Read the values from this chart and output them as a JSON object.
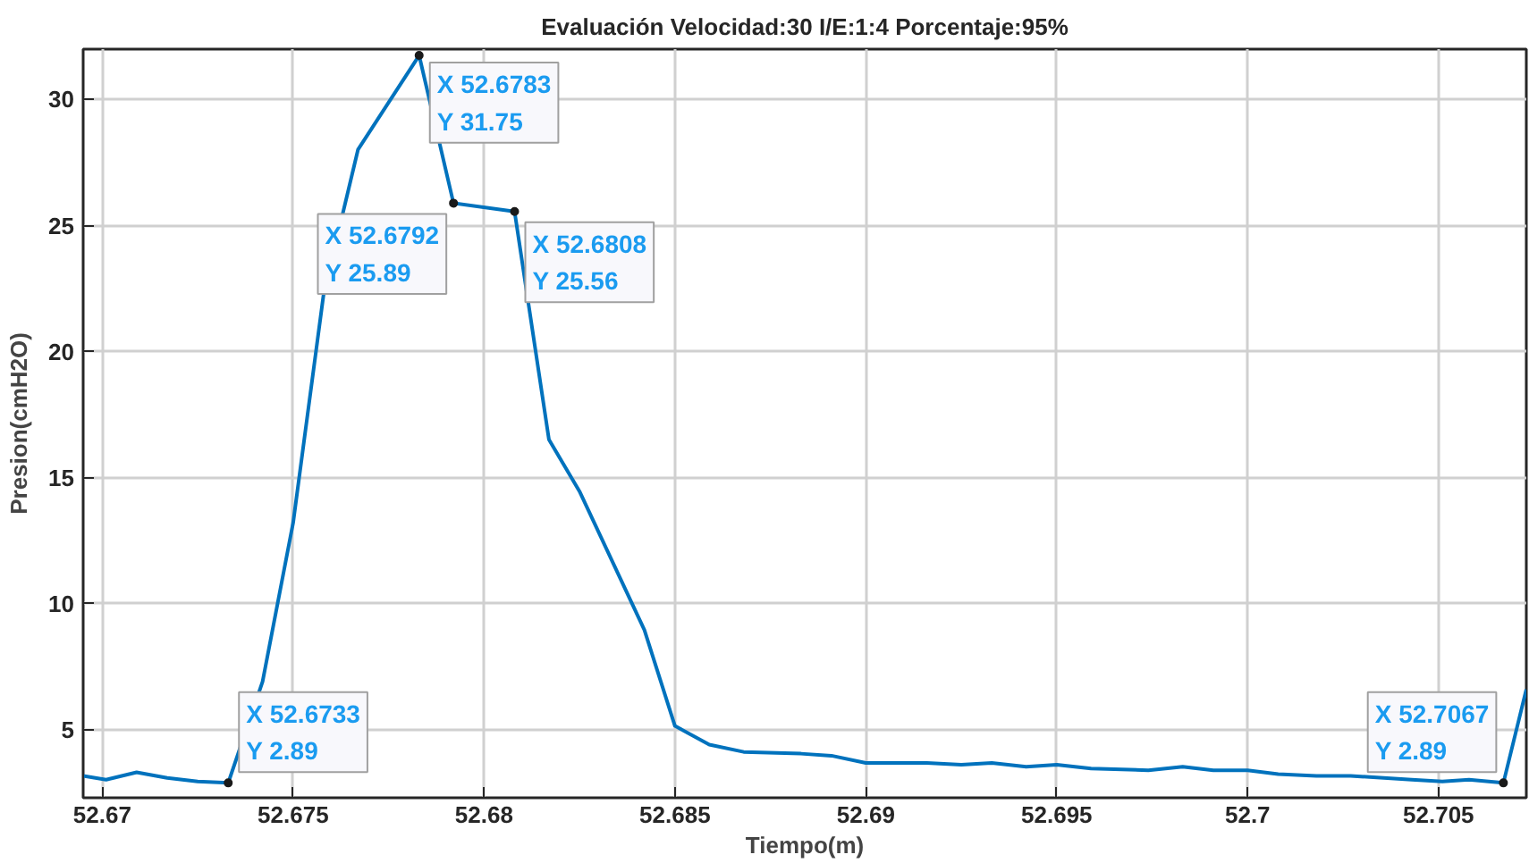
{
  "chart_data": {
    "type": "line",
    "title": "Evaluación Velocidad:30 I/E:1:4 Porcentaje:95%",
    "xlabel": "Tiempo(m)",
    "ylabel": "Presion(cmH2O)",
    "x": [
      52.6695,
      52.6701,
      52.6709,
      52.6717,
      52.6725,
      52.6733,
      52.6742,
      52.675,
      52.6758,
      52.6767,
      52.6783,
      52.6792,
      52.6808,
      52.6817,
      52.6825,
      52.6842,
      52.685,
      52.6859,
      52.6868,
      52.6883,
      52.6891,
      52.69,
      52.6916,
      52.6925,
      52.6933,
      52.6942,
      52.695,
      52.6959,
      52.6974,
      52.6983,
      52.6991,
      52.7,
      52.7008,
      52.7018,
      52.7027,
      52.7043,
      52.7051,
      52.7058,
      52.7067,
      52.7073
    ],
    "series": [
      {
        "color": "#0072bd",
        "values": [
          3.17,
          3.02,
          3.31,
          3.09,
          2.95,
          2.89,
          6.91,
          13.21,
          22.3,
          28.02,
          31.75,
          25.89,
          25.56,
          16.51,
          14.46,
          8.96,
          5.15,
          4.41,
          4.12,
          4.05,
          3.97,
          3.68,
          3.68,
          3.61,
          3.68,
          3.53,
          3.61,
          3.46,
          3.39,
          3.53,
          3.39,
          3.39,
          3.24,
          3.17,
          3.17,
          3.02,
          2.95,
          3.02,
          2.89,
          6.6
        ]
      }
    ],
    "xlim": [
      52.6695,
      52.7073
    ],
    "ylim": [
      2.3,
      32
    ],
    "xticks": [
      52.67,
      52.675,
      52.68,
      52.685,
      52.69,
      52.695,
      52.7,
      52.705
    ],
    "yticks": [
      5,
      10,
      15,
      20,
      25,
      30
    ],
    "grid": true,
    "marker": "none",
    "line_style": "solid",
    "annotations": [
      {
        "text": "X 52.6783\nY 31.75",
        "x": 52.6783,
        "y": 31.75
      },
      {
        "text": "X 52.6792\nY 25.89",
        "x": 52.6792,
        "y": 25.89
      },
      {
        "text": "X 52.6808\nY 25.56",
        "x": 52.6808,
        "y": 25.56
      },
      {
        "text": "X 52.6733\nY 2.89",
        "x": 52.6733,
        "y": 2.89
      },
      {
        "text": "X 52.7067\nY 2.89",
        "x": 52.7067,
        "y": 2.89
      }
    ]
  }
}
